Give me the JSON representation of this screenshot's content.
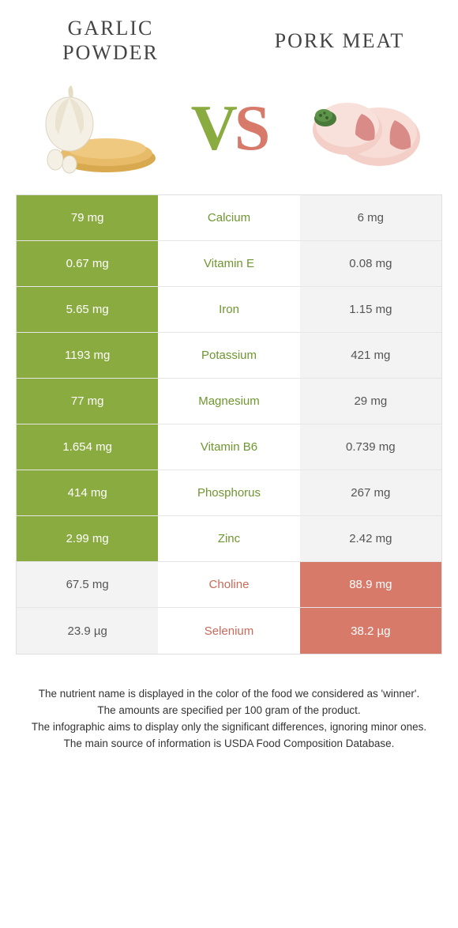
{
  "left_food": {
    "title": "GARLIC POWDER"
  },
  "right_food": {
    "title": "PORK MEAT"
  },
  "vs": {
    "v": "V",
    "s": "S"
  },
  "colors": {
    "green": "#8aab3f",
    "pink": "#d77a6a",
    "gray_bg": "#f3f3f3",
    "label_green": "#6f9630",
    "label_pink": "#c86a5a",
    "border": "#e0e0e0"
  },
  "rows": [
    {
      "nutrient": "Calcium",
      "left": "79 mg",
      "right": "6 mg",
      "winner": "left"
    },
    {
      "nutrient": "Vitamin E",
      "left": "0.67 mg",
      "right": "0.08 mg",
      "winner": "left"
    },
    {
      "nutrient": "Iron",
      "left": "5.65 mg",
      "right": "1.15 mg",
      "winner": "left"
    },
    {
      "nutrient": "Potassium",
      "left": "1193 mg",
      "right": "421 mg",
      "winner": "left"
    },
    {
      "nutrient": "Magnesium",
      "left": "77 mg",
      "right": "29 mg",
      "winner": "left"
    },
    {
      "nutrient": "Vitamin B6",
      "left": "1.654 mg",
      "right": "0.739 mg",
      "winner": "left"
    },
    {
      "nutrient": "Phosphorus",
      "left": "414 mg",
      "right": "267 mg",
      "winner": "left"
    },
    {
      "nutrient": "Zinc",
      "left": "2.99 mg",
      "right": "2.42 mg",
      "winner": "left"
    },
    {
      "nutrient": "Choline",
      "left": "67.5 mg",
      "right": "88.9 mg",
      "winner": "right"
    },
    {
      "nutrient": "Selenium",
      "left": "23.9 µg",
      "right": "38.2 µg",
      "winner": "right"
    }
  ],
  "footnotes": [
    "The nutrient name is displayed in the color of the food we considered as 'winner'.",
    "The amounts are specified per 100 gram of the product.",
    "The infographic aims to display only the significant differences, ignoring minor ones.",
    "The main source of information is USDA Food Composition Database."
  ]
}
